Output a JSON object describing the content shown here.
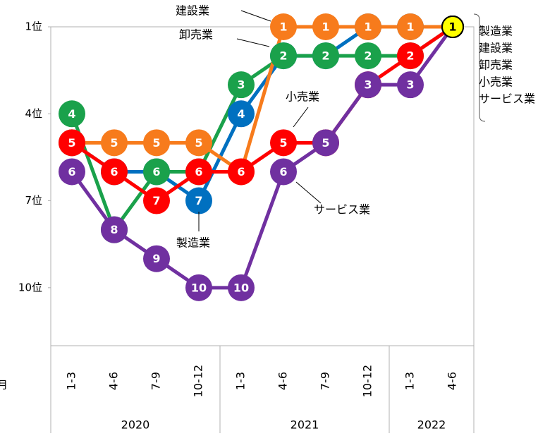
{
  "chart_data": {
    "type": "line",
    "categories": [
      "1-3",
      "4-6",
      "7-9",
      "10-12",
      "1-3",
      "4-6",
      "7-9",
      "10-12",
      "1-3",
      "4-6"
    ],
    "groups": [
      {
        "label": "2020",
        "span": 4
      },
      {
        "label": "2021",
        "span": 4
      },
      {
        "label": "2022",
        "span": 2
      }
    ],
    "series": [
      {
        "name": "製造業",
        "color": "#0070c0",
        "values": [
          5,
          6,
          6,
          7,
          4,
          2,
          2,
          1,
          1,
          1
        ]
      },
      {
        "name": "建設業",
        "color": "#f77b1c",
        "values": [
          5,
          5,
          5,
          5,
          6,
          1,
          1,
          1,
          1,
          1
        ]
      },
      {
        "name": "卸売業",
        "color": "#1aa14b",
        "values": [
          4,
          8,
          6,
          6,
          3,
          2,
          2,
          2,
          2,
          1
        ]
      },
      {
        "name": "小売業",
        "color": "#ff0000",
        "values": [
          5,
          6,
          7,
          6,
          6,
          5,
          5,
          3,
          2,
          1
        ]
      },
      {
        "name": "サービス業",
        "color": "#7030a0",
        "values": [
          6,
          8,
          9,
          10,
          10,
          6,
          5,
          3,
          3,
          1
        ]
      }
    ],
    "last_point_color": "#ffff00",
    "ylim": [
      1,
      12
    ],
    "yticks": [
      {
        "value": 1,
        "label": "1位"
      },
      {
        "value": 4,
        "label": "4位"
      },
      {
        "value": 7,
        "label": "7位"
      },
      {
        "value": 10,
        "label": "10位"
      }
    ],
    "annotations": [
      "建設業",
      "卸売業",
      "小売業",
      "製造業",
      "サービス業"
    ],
    "x_unit_label": "月"
  }
}
